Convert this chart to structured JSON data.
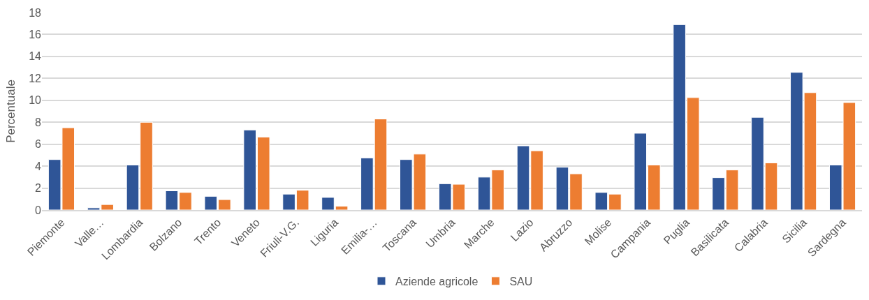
{
  "chart_data": {
    "type": "bar",
    "ylabel": "Percentuale",
    "categories": [
      "Piemonte",
      "Valle…",
      "Lombardia",
      "Bolzano",
      "Trento",
      "Veneto",
      "Friuli-V.G.",
      "Liguria",
      "Emilia-…",
      "Toscana",
      "Umbria",
      "Marche",
      "Lazio",
      "Abruzzo",
      "Molise",
      "Campania",
      "Puglia",
      "Basilicata",
      "Calabria",
      "Sicilia",
      "Sardegna"
    ],
    "series": [
      {
        "name": "Aziende agricole",
        "color": "#2f5597",
        "values": [
          4.6,
          0.2,
          4.1,
          1.75,
          1.25,
          7.3,
          1.45,
          1.15,
          4.75,
          4.6,
          2.4,
          3.0,
          5.85,
          3.9,
          1.6,
          7.0,
          16.9,
          2.95,
          8.45,
          12.55,
          4.1
        ]
      },
      {
        "name": "SAU",
        "color": "#ed7d31",
        "values": [
          7.5,
          0.5,
          8.0,
          1.6,
          0.95,
          6.65,
          1.8,
          0.35,
          8.3,
          5.1,
          2.35,
          3.65,
          5.4,
          3.3,
          1.45,
          4.1,
          10.25,
          3.65,
          4.3,
          10.7,
          9.8
        ]
      }
    ],
    "ylim": [
      0,
      18
    ],
    "yticks": [
      0,
      2,
      4,
      6,
      8,
      10,
      12,
      14,
      16,
      18
    ],
    "grid": "y",
    "legend": "bottom"
  }
}
